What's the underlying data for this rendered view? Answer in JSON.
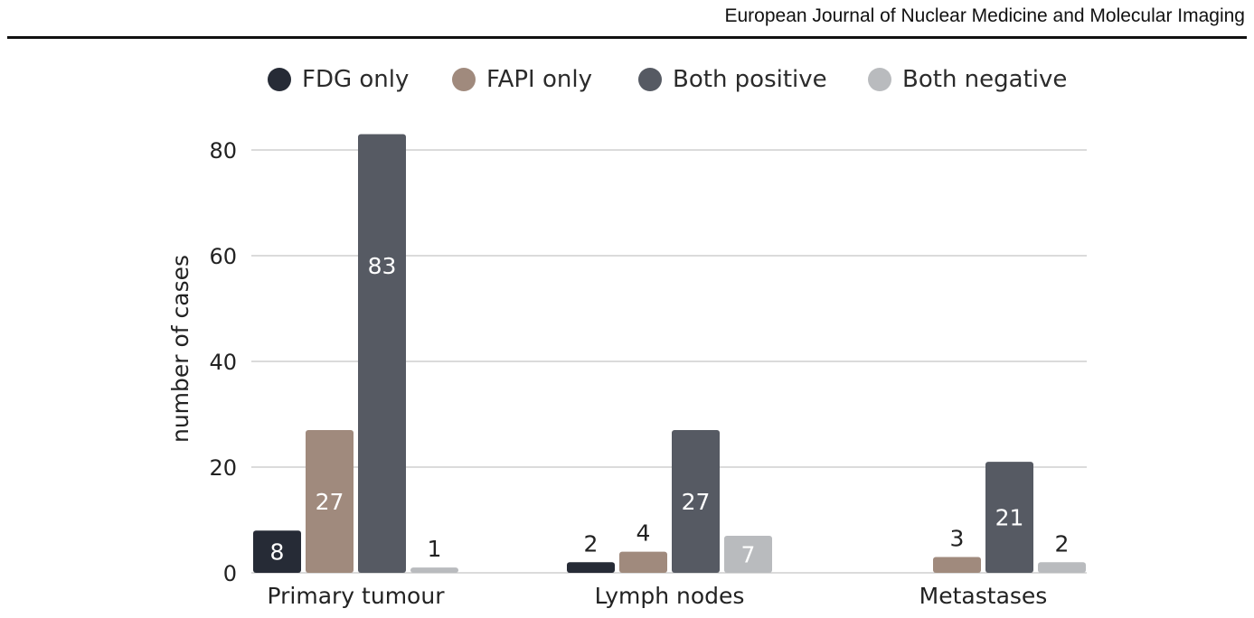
{
  "header": {
    "journal": "European Journal of Nuclear Medicine and Molecular Imaging"
  },
  "chart_data": {
    "type": "bar",
    "title": "",
    "xlabel": "",
    "ylabel": "number of cases",
    "ylim": [
      0,
      85
    ],
    "yticks": [
      0,
      20,
      40,
      60,
      80
    ],
    "categories": [
      "Primary tumour",
      "Lymph nodes",
      "Metastases"
    ],
    "grid": true,
    "legend_position": "top",
    "series": [
      {
        "name": "FDG only",
        "color": "#262b36",
        "values": [
          8,
          2,
          null
        ],
        "labels": [
          "8",
          "2",
          ""
        ]
      },
      {
        "name": "FAPI only",
        "color": "#a08a7d",
        "values": [
          27,
          4,
          3
        ],
        "labels": [
          "27",
          "4",
          "3"
        ]
      },
      {
        "name": "Both positive",
        "color": "#565a63",
        "values": [
          83,
          27,
          21
        ],
        "labels": [
          "83",
          "27",
          "21"
        ]
      },
      {
        "name": "Both negative",
        "color": "#b9bbbe",
        "values": [
          1,
          7,
          2
        ],
        "labels": [
          "1",
          "7",
          "2"
        ]
      }
    ]
  }
}
